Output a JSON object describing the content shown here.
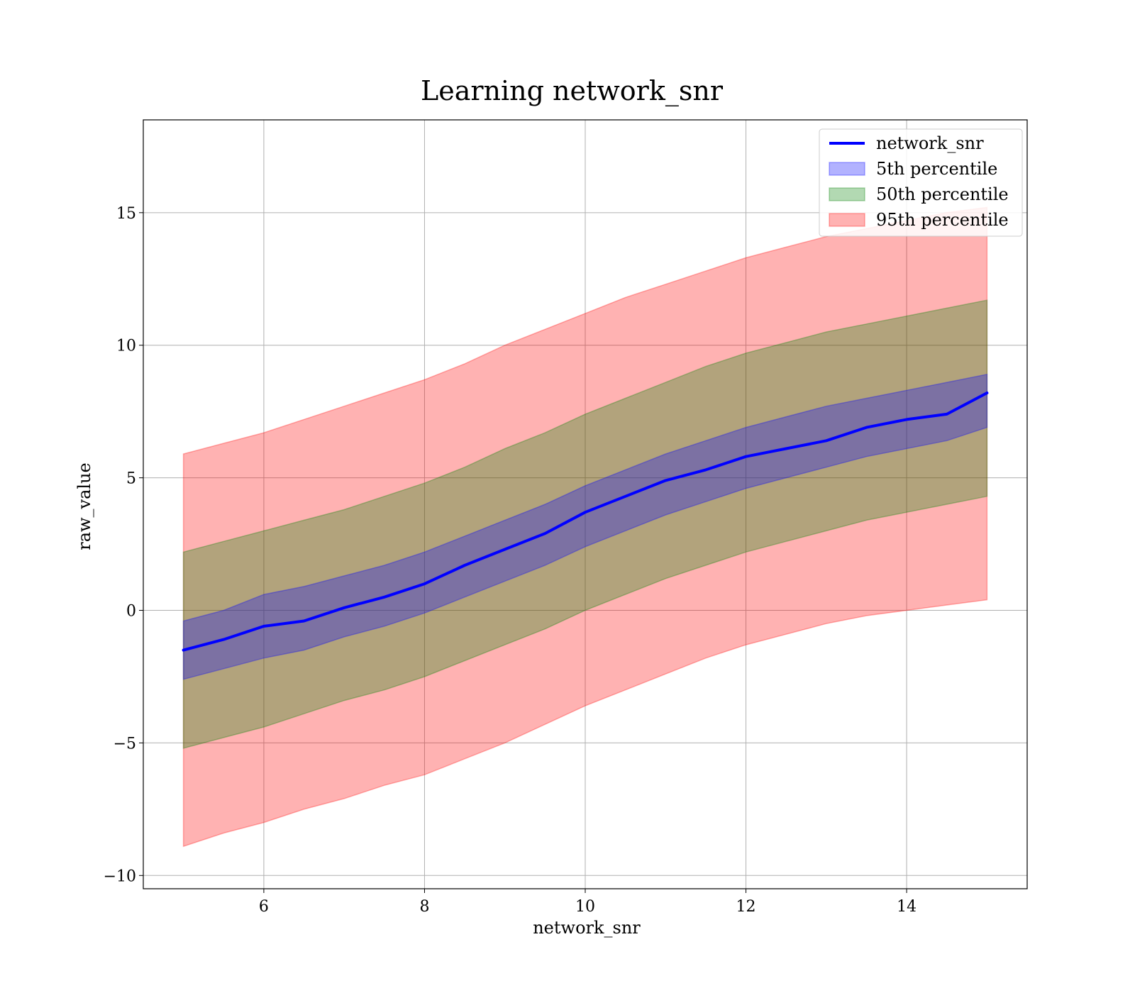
{
  "chart_data": {
    "type": "line",
    "title": "Learning network_snr",
    "xlabel": "network_snr",
    "ylabel": "raw_value",
    "xlim": [
      4.5,
      15.5
    ],
    "ylim": [
      -10.5,
      18.5
    ],
    "xticks": [
      6,
      8,
      10,
      12,
      14
    ],
    "yticks": [
      -10,
      -5,
      0,
      5,
      10,
      15
    ],
    "ytick_labels": [
      "−10",
      "−5",
      "0",
      "5",
      "10",
      "15"
    ],
    "grid": true,
    "legend_position": "top-right",
    "x": [
      5.0,
      5.5,
      6.0,
      6.5,
      7.0,
      7.5,
      8.0,
      8.5,
      9.0,
      9.5,
      10.0,
      10.5,
      11.0,
      11.5,
      12.0,
      12.5,
      13.0,
      13.5,
      14.0,
      14.5,
      15.0
    ],
    "series": [
      {
        "name": "network_snr",
        "kind": "line",
        "color": "#0000ff",
        "values": [
          -1.5,
          -1.1,
          -0.6,
          -0.4,
          0.1,
          0.5,
          1.0,
          1.7,
          2.3,
          2.9,
          3.7,
          4.3,
          4.9,
          5.3,
          5.8,
          6.1,
          6.4,
          6.9,
          7.2,
          7.4,
          8.2
        ]
      },
      {
        "name": "5th percentile",
        "kind": "band",
        "color": "#0000ff",
        "opacity": 0.3,
        "lower": [
          -2.6,
          -2.2,
          -1.8,
          -1.5,
          -1.0,
          -0.6,
          -0.1,
          0.5,
          1.1,
          1.7,
          2.4,
          3.0,
          3.6,
          4.1,
          4.6,
          5.0,
          5.4,
          5.8,
          6.1,
          6.4,
          6.9
        ],
        "upper": [
          -0.4,
          0.0,
          0.6,
          0.9,
          1.3,
          1.7,
          2.2,
          2.8,
          3.4,
          4.0,
          4.7,
          5.3,
          5.9,
          6.4,
          6.9,
          7.3,
          7.7,
          8.0,
          8.3,
          8.6,
          8.9
        ]
      },
      {
        "name": "50th percentile",
        "kind": "band",
        "color": "#008000",
        "opacity": 0.3,
        "lower": [
          -5.2,
          -4.8,
          -4.4,
          -3.9,
          -3.4,
          -3.0,
          -2.5,
          -1.9,
          -1.3,
          -0.7,
          0.0,
          0.6,
          1.2,
          1.7,
          2.2,
          2.6,
          3.0,
          3.4,
          3.7,
          4.0,
          4.3
        ],
        "upper": [
          2.2,
          2.6,
          3.0,
          3.4,
          3.8,
          4.3,
          4.8,
          5.4,
          6.1,
          6.7,
          7.4,
          8.0,
          8.6,
          9.2,
          9.7,
          10.1,
          10.5,
          10.8,
          11.1,
          11.4,
          11.7
        ]
      },
      {
        "name": "95th percentile",
        "kind": "band",
        "color": "#ff0000",
        "opacity": 0.3,
        "lower": [
          -8.9,
          -8.4,
          -8.0,
          -7.5,
          -7.1,
          -6.6,
          -6.2,
          -5.6,
          -5.0,
          -4.3,
          -3.6,
          -3.0,
          -2.4,
          -1.8,
          -1.3,
          -0.9,
          -0.5,
          -0.2,
          0.0,
          0.2,
          0.4
        ],
        "upper": [
          5.9,
          6.3,
          6.7,
          7.2,
          7.7,
          8.2,
          8.7,
          9.3,
          10.0,
          10.6,
          11.2,
          11.8,
          12.3,
          12.8,
          13.3,
          13.7,
          14.1,
          14.4,
          14.7,
          15.0,
          15.2
        ]
      }
    ]
  }
}
